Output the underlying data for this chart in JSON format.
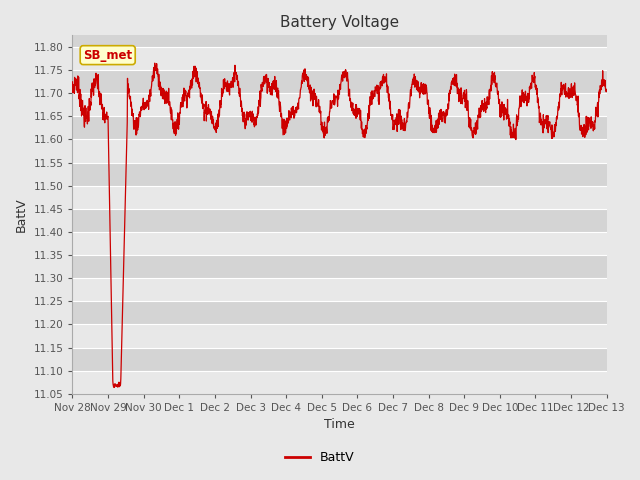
{
  "title": "Battery Voltage",
  "xlabel": "Time",
  "ylabel": "BattV",
  "legend_label": "BattV",
  "annotation_label": "SB_met",
  "line_color": "#cc0000",
  "fig_bg_color": "#e8e8e8",
  "plot_bg_color": "#d4d4d4",
  "ylim": [
    11.05,
    11.825
  ],
  "yticks": [
    11.05,
    11.1,
    11.15,
    11.2,
    11.25,
    11.3,
    11.35,
    11.4,
    11.45,
    11.5,
    11.55,
    11.6,
    11.65,
    11.7,
    11.75,
    11.8
  ],
  "xtick_labels": [
    "Nov 28",
    "Nov 29",
    "Nov 30",
    "Dec 1",
    "Dec 2",
    "Dec 3",
    "Dec 4",
    "Dec 5",
    "Dec 6",
    "Dec 7",
    "Dec 8",
    "Dec 9",
    "Dec 10",
    "Dec 11",
    "Dec 12",
    "Dec 13"
  ],
  "n_days": 15,
  "annotation_box_color": "#ffffcc",
  "annotation_border_color": "#ccaa00",
  "annotation_text_color": "#cc0000",
  "grid_color": "#ffffff",
  "band_color_light": "#e8e8e8",
  "band_color_dark": "#d4d4d4"
}
